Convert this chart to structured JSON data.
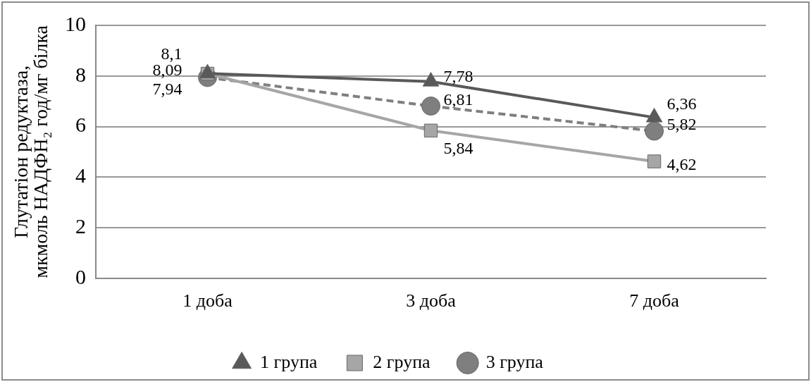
{
  "chart_data": {
    "type": "line",
    "ylabel": "Глутатіон редуктаза, мкмоль НАДФН₂ год/мг білка",
    "categories": [
      "1 доба",
      "3 доба",
      "7 доба"
    ],
    "series": [
      {
        "name": "1 група",
        "color": "#595959",
        "marker": "triangle",
        "line_style": "solid",
        "values": [
          8.1,
          7.78,
          6.36
        ],
        "value_labels": [
          "8,1",
          "7,78",
          "6,36"
        ]
      },
      {
        "name": "2 група",
        "color": "#a6a6a6",
        "marker": "square",
        "line_style": "solid",
        "values": [
          8.09,
          5.84,
          4.62
        ],
        "value_labels": [
          "8,09",
          "5,84",
          "4,62"
        ]
      },
      {
        "name": "3 група",
        "color": "#7f7f7f",
        "marker": "circle",
        "line_style": "dashed",
        "values": [
          7.94,
          6.81,
          5.82
        ],
        "value_labels": [
          "7,94",
          "6,81",
          "5,82"
        ]
      }
    ],
    "ylim": [
      0,
      10
    ],
    "yticks": [
      0,
      2,
      4,
      6,
      8,
      10
    ],
    "grid": "y",
    "legend": "bottom"
  }
}
